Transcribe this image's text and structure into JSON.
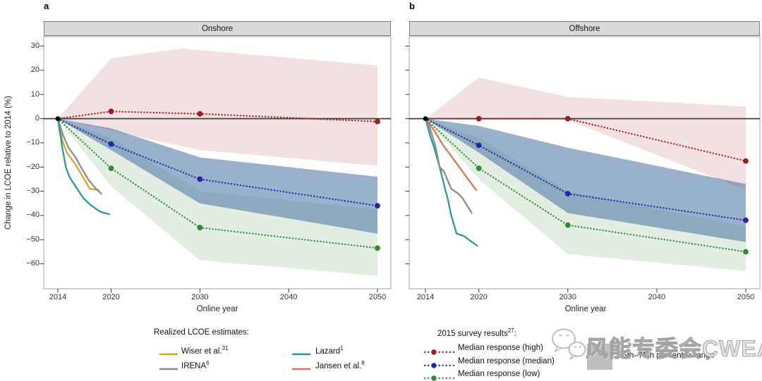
{
  "figure": {
    "panel_a_label": "a",
    "panel_b_label": "b",
    "background": "#ffffff",
    "header_fill": "#d9d9d9",
    "frame_color": "#a0a0a0",
    "zero_line_color": "#3c3c3c"
  },
  "chart_data": [
    {
      "type": "line",
      "title": "Onshore",
      "xlabel": "Online year",
      "ylabel": "Change in LCOE relative to 2014 (%)",
      "xticks": [
        2014,
        2020,
        2030,
        2040,
        2050
      ],
      "yticks": [
        30,
        20,
        10,
        0,
        -10,
        -20,
        -30,
        -40,
        -50,
        -60
      ],
      "ylim": [
        -70,
        34
      ],
      "x": [
        2014,
        2020,
        2030,
        2050
      ],
      "start_marker": {
        "x": 2014,
        "y": 0,
        "color": "#000000"
      },
      "series": [
        {
          "name": "Median response (high)",
          "style": "dotted",
          "color": "#9e1b20",
          "values": [
            0,
            3,
            2,
            -1.2
          ]
        },
        {
          "name": "Median response (median)",
          "style": "dotted",
          "color": "#2525ab",
          "values": [
            0,
            -10.5,
            -25,
            -36
          ]
        },
        {
          "name": "Median response (low)",
          "style": "dotted",
          "color": "#2e8b30",
          "values": [
            0,
            -20.5,
            -45,
            -53.5
          ]
        }
      ],
      "bands": [
        {
          "name": "25th-75th percentile (high)",
          "color": "rgba(178,60,70,0.16)",
          "top": [
            [
              2014,
              0
            ],
            [
              2020,
              25
            ],
            [
              2028,
              29
            ],
            [
              2050,
              22
            ]
          ],
          "bottom": [
            [
              2014,
              0
            ],
            [
              2020,
              -5
            ],
            [
              2030,
              -13
            ],
            [
              2050,
              -19.5
            ]
          ]
        },
        {
          "name": "25th-75th percentile (low)",
          "color": "rgba(80,150,80,0.16)",
          "top": [
            [
              2014,
              0
            ],
            [
              2020,
              -8
            ],
            [
              2030,
              -30
            ],
            [
              2050,
              -37.5
            ]
          ],
          "bottom": [
            [
              2014,
              0
            ],
            [
              2020,
              -28
            ],
            [
              2030,
              -58.5
            ],
            [
              2050,
              -65
            ]
          ]
        },
        {
          "name": "25th-75th percentile (median)",
          "color": "rgba(62,105,158,0.52)",
          "top": [
            [
              2014,
              0
            ],
            [
              2020,
              -4
            ],
            [
              2030,
              -16
            ],
            [
              2050,
              -24
            ]
          ],
          "bottom": [
            [
              2014,
              0
            ],
            [
              2020,
              -13
            ],
            [
              2030,
              -35
            ],
            [
              2050,
              -47.5
            ]
          ]
        }
      ],
      "realized": [
        {
          "name": "Wiser et al.",
          "color": "#d9a427",
          "points": [
            [
              2014,
              0
            ],
            [
              2014.5,
              -9
            ],
            [
              2015,
              -14
            ],
            [
              2016,
              -19
            ],
            [
              2016.8,
              -24
            ],
            [
              2017.6,
              -29
            ],
            [
              2018.6,
              -29.5
            ]
          ]
        },
        {
          "name": "IRENA",
          "color": "#8c8c8c",
          "points": [
            [
              2014,
              0
            ],
            [
              2014.6,
              -7
            ],
            [
              2015.2,
              -12
            ],
            [
              2016,
              -16
            ],
            [
              2016.6,
              -20
            ],
            [
              2017.4,
              -25
            ],
            [
              2018.3,
              -29
            ],
            [
              2018.9,
              -31
            ]
          ]
        },
        {
          "name": "Lazard",
          "color": "#2a9898",
          "points": [
            [
              2014,
              0
            ],
            [
              2014.5,
              -12
            ],
            [
              2014.9,
              -20
            ],
            [
              2015.3,
              -24
            ],
            [
              2016,
              -28
            ],
            [
              2016.9,
              -33
            ],
            [
              2017.8,
              -36
            ],
            [
              2018.8,
              -38.5
            ],
            [
              2019.8,
              -39.5
            ]
          ]
        }
      ]
    },
    {
      "type": "line",
      "title": "Offshore",
      "xlabel": "Online year",
      "ylabel": "Change in LCOE relative to 2014 (%)",
      "xticks": [
        2014,
        2020,
        2030,
        2040,
        2050
      ],
      "yticks": [
        30,
        20,
        10,
        0,
        -10,
        -20,
        -30,
        -40,
        -50,
        -60
      ],
      "ylim": [
        -70,
        34
      ],
      "x": [
        2014,
        2020,
        2030,
        2050
      ],
      "start_marker": {
        "x": 2014,
        "y": 0,
        "color": "#000000"
      },
      "series": [
        {
          "name": "Median response (high)",
          "style": "dotted",
          "color": "#9e1b20",
          "values": [
            0,
            0,
            0,
            -17.5
          ]
        },
        {
          "name": "Median response (median)",
          "style": "dotted",
          "color": "#2525ab",
          "values": [
            0,
            -11,
            -31,
            -42
          ]
        },
        {
          "name": "Median response (low)",
          "style": "dotted",
          "color": "#2e8b30",
          "values": [
            0,
            -20.5,
            -44,
            -55
          ]
        }
      ],
      "bands": [
        {
          "name": "25th-75th percentile (high)",
          "color": "rgba(178,60,70,0.16)",
          "top": [
            [
              2014,
              0
            ],
            [
              2020,
              17
            ],
            [
              2030,
              9
            ],
            [
              2050,
              5
            ]
          ],
          "bottom": [
            [
              2014,
              0
            ],
            [
              2020,
              -0.5
            ],
            [
              2030,
              -0.5
            ],
            [
              2050,
              -29.5
            ]
          ]
        },
        {
          "name": "25th-75th percentile (low)",
          "color": "rgba(80,150,80,0.16)",
          "top": [
            [
              2014,
              0
            ],
            [
              2020,
              -8
            ],
            [
              2030,
              -30
            ],
            [
              2050,
              -44.5
            ]
          ],
          "bottom": [
            [
              2014,
              0
            ],
            [
              2020,
              -25
            ],
            [
              2030,
              -56
            ],
            [
              2050,
              -63
            ]
          ]
        },
        {
          "name": "25th-75th percentile (median)",
          "color": "rgba(62,105,158,0.52)",
          "top": [
            [
              2014,
              0
            ],
            [
              2020,
              -3
            ],
            [
              2030,
              -12
            ],
            [
              2050,
              -27
            ]
          ],
          "bottom": [
            [
              2014,
              0
            ],
            [
              2020,
              -14
            ],
            [
              2030,
              -39
            ],
            [
              2050,
              -51
            ]
          ]
        }
      ],
      "realized": [
        {
          "name": "Lazard",
          "color": "#2a9898",
          "points": [
            [
              2014,
              0
            ],
            [
              2014.6,
              -8
            ],
            [
              2014.9,
              -11
            ],
            [
              2015.6,
              -20
            ],
            [
              2016.2,
              -29
            ],
            [
              2016.5,
              -33
            ],
            [
              2016.9,
              -40
            ],
            [
              2017.5,
              -47.5
            ],
            [
              2018.3,
              -48.5
            ],
            [
              2019.8,
              -52.5
            ]
          ]
        },
        {
          "name": "IRENA",
          "color": "#8c8c8c",
          "points": [
            [
              2014,
              0
            ],
            [
              2014.5,
              -4
            ],
            [
              2015.1,
              -11
            ],
            [
              2015.6,
              -20
            ],
            [
              2016.1,
              -22
            ],
            [
              2016.9,
              -29
            ],
            [
              2017.7,
              -31
            ],
            [
              2018.2,
              -33
            ],
            [
              2019.2,
              -39
            ]
          ]
        },
        {
          "name": "Jansen et al.",
          "color": "#dd7356",
          "points": [
            [
              2014,
              0
            ],
            [
              2015,
              -5
            ],
            [
              2016,
              -11
            ],
            [
              2017,
              -16
            ],
            [
              2018,
              -21
            ],
            [
              2019,
              -26
            ],
            [
              2019.7,
              -29.5
            ]
          ]
        }
      ]
    }
  ],
  "legend_realized": {
    "title": "Realized LCOE estimates:",
    "items": [
      {
        "label": "Wiser et al.",
        "sup": "31",
        "color": "#d9a427"
      },
      {
        "label": "IRENA",
        "sup": "6",
        "color": "#8c8c8c"
      },
      {
        "label": "Lazard",
        "sup": "1",
        "color": "#2a9898"
      },
      {
        "label": "Jansen et al.",
        "sup": "8",
        "color": "#dd7356"
      }
    ]
  },
  "legend_survey": {
    "title_prefix": "2015 survey results",
    "title_sup": "27",
    "title_suffix": ":",
    "items": [
      {
        "label": "Median response (high)",
        "color": "#9e1b20"
      },
      {
        "label": "Median response (median)",
        "color": "#2525ab"
      },
      {
        "label": "Median response (low)",
        "color": "#2e8b30"
      }
    ],
    "range_label": "25th–75th percentile range",
    "range_color": "#bdbdbd"
  },
  "watermark": {
    "text": "风能专委会CWEA"
  }
}
